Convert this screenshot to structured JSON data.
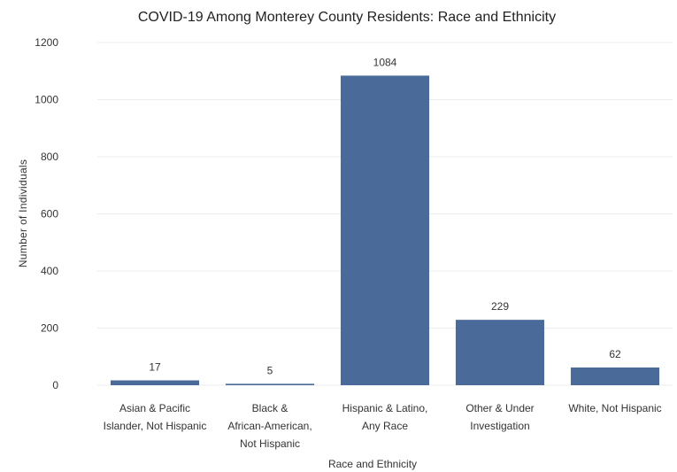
{
  "chart_data": {
    "type": "bar",
    "title": "COVID-19 Among Monterey County Residents: Race and Ethnicity",
    "xlabel": "Race and Ethnicity",
    "ylabel": "Number of Individuals",
    "categories": [
      [
        "Asian & Pacific",
        "Islander, Not Hispanic"
      ],
      [
        "Black &",
        "African-American,",
        "Not Hispanic"
      ],
      [
        "Hispanic & Latino,",
        "Any Race"
      ],
      [
        "Other & Under",
        "Investigation"
      ],
      [
        "White, Not Hispanic"
      ]
    ],
    "values": [
      17,
      5,
      1084,
      229,
      62
    ],
    "data_labels": [
      "17",
      "5",
      "1084",
      "229",
      "62"
    ],
    "ylim": [
      0,
      1200
    ],
    "yticks": [
      0,
      200,
      400,
      600,
      800,
      1000,
      1200
    ],
    "grid": true,
    "legend": "none",
    "colors": {
      "bar": "#4a6b99",
      "grid": "#ececec",
      "text": "#333333"
    }
  }
}
